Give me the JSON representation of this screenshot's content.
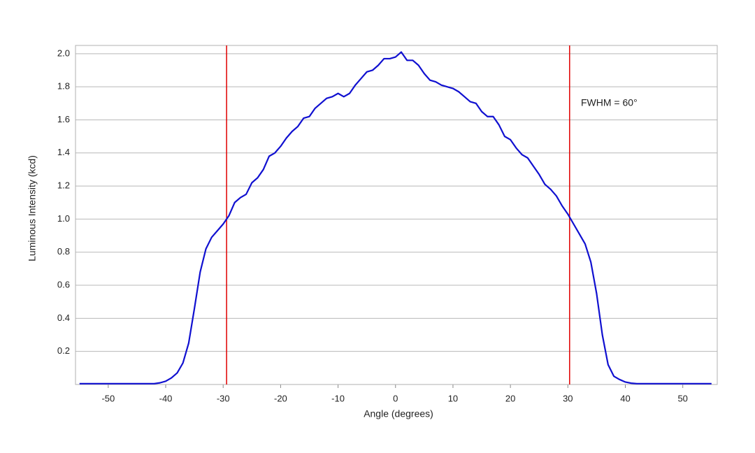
{
  "chart_data": {
    "type": "line",
    "xlabel": "Angle (degrees)",
    "ylabel": "Luminous Intensity (kcd)",
    "annotation": "FWHM = 60°",
    "x": [
      -55,
      -54,
      -53,
      -52,
      -51,
      -50,
      -49,
      -48,
      -47,
      -46,
      -45,
      -44,
      -43,
      -42,
      -41,
      -40,
      -39,
      -38,
      -37,
      -36,
      -35,
      -34,
      -33,
      -32,
      -31,
      -30,
      -29,
      -28,
      -27,
      -26,
      -25,
      -24,
      -23,
      -22,
      -21,
      -20,
      -19,
      -18,
      -17,
      -16,
      -15,
      -14,
      -13,
      -12,
      -11,
      -10,
      -9,
      -8,
      -7,
      -6,
      -5,
      -4,
      -3,
      -2,
      -1,
      0,
      1,
      2,
      3,
      4,
      5,
      6,
      7,
      8,
      9,
      10,
      11,
      12,
      13,
      14,
      15,
      16,
      17,
      18,
      19,
      20,
      21,
      22,
      23,
      24,
      25,
      26,
      27,
      28,
      29,
      30,
      31,
      32,
      33,
      34,
      35,
      36,
      37,
      38,
      39,
      40,
      41,
      42,
      43,
      44,
      45,
      46,
      47,
      48,
      49,
      50,
      51,
      52,
      53,
      54,
      55
    ],
    "series": [
      {
        "color": "#1010d0",
        "values": [
          0.005,
          0.005,
          0.005,
          0.005,
          0.005,
          0.005,
          0.005,
          0.005,
          0.005,
          0.005,
          0.005,
          0.005,
          0.005,
          0.005,
          0.01,
          0.02,
          0.04,
          0.07,
          0.13,
          0.25,
          0.46,
          0.68,
          0.82,
          0.89,
          0.93,
          0.97,
          1.02,
          1.1,
          1.13,
          1.15,
          1.22,
          1.25,
          1.3,
          1.38,
          1.4,
          1.44,
          1.49,
          1.53,
          1.56,
          1.61,
          1.62,
          1.67,
          1.7,
          1.73,
          1.74,
          1.76,
          1.74,
          1.76,
          1.81,
          1.85,
          1.89,
          1.9,
          1.93,
          1.97,
          1.97,
          1.98,
          2.01,
          1.96,
          1.96,
          1.93,
          1.88,
          1.84,
          1.83,
          1.81,
          1.8,
          1.79,
          1.77,
          1.74,
          1.71,
          1.7,
          1.65,
          1.62,
          1.62,
          1.57,
          1.5,
          1.48,
          1.43,
          1.39,
          1.37,
          1.32,
          1.27,
          1.21,
          1.18,
          1.14,
          1.08,
          1.03,
          0.97,
          0.91,
          0.85,
          0.74,
          0.55,
          0.3,
          0.12,
          0.05,
          0.03,
          0.015,
          0.008,
          0.005,
          0.005,
          0.005,
          0.005,
          0.005,
          0.005,
          0.005,
          0.005,
          0.005,
          0.005,
          0.005,
          0.005,
          0.005,
          0.005
        ]
      }
    ],
    "vlines": {
      "color": "#e00000",
      "values": [
        -29.4,
        30.3
      ]
    },
    "xlim": [
      -55.7,
      56
    ],
    "ylim": [
      0,
      2.05
    ],
    "xticks": [
      -50,
      -40,
      -30,
      -20,
      -10,
      0,
      10,
      20,
      30,
      40,
      50
    ],
    "yticks": [
      0.2,
      0.4,
      0.6,
      0.8,
      {
        "value": 1,
        "label": "1.0"
      },
      1.2,
      1.4,
      1.6,
      1.8,
      {
        "value": 2,
        "label": "2.0"
      }
    ],
    "grid": true
  }
}
